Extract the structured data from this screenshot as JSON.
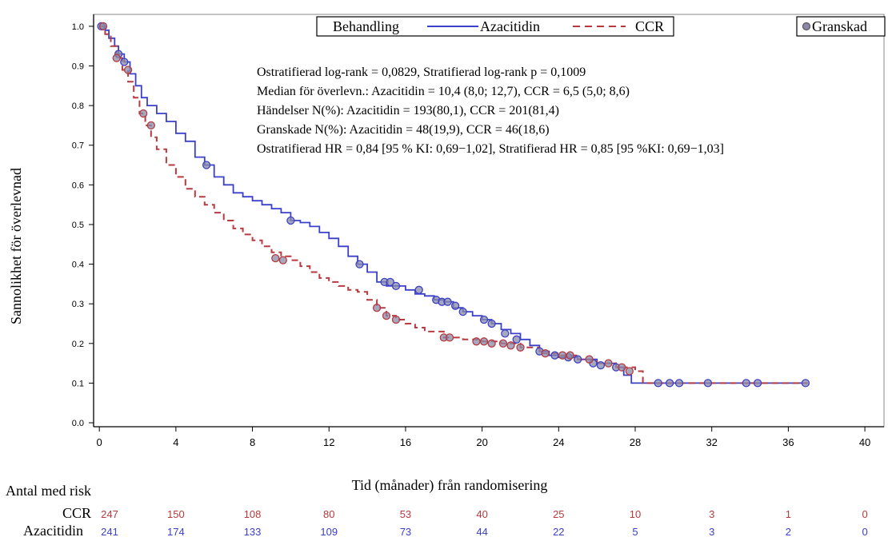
{
  "colors": {
    "azacitidin": "#3b40c8",
    "ccr": "#b63a3f",
    "censor_fill": "#8a8aa8",
    "axis": "#000000"
  },
  "legend": {
    "title": "Behandling",
    "azacitidin": "Azacitidin",
    "ccr": "CCR",
    "censored": "Granskad"
  },
  "stats": [
    "Ostratifierad log-rank = 0,0829, Stratifierad log-rank p = 0,1009",
    "Median för överlevn.: Azacitidin = 10,4 (8,0; 12,7), CCR = 6,5 (5,0; 8,6)",
    "Händelser N(%): Azacitidin = 193(80,1), CCR = 201(81,4)",
    "Granskade N(%): Azacitidin = 48(19,9), CCR = 46(18,6)",
    "Ostratifierad HR = 0,84 [95 % KI: 0,69−1,02], Stratifierad HR = 0,85 [95 %KI: 0,69−1,03]"
  ],
  "risk_table": {
    "title": "Antal med risk",
    "rows": [
      {
        "label": "CCR",
        "series": "ccr",
        "values": [
          "247",
          "150",
          "108",
          "80",
          "53",
          "40",
          "25",
          "10",
          "3",
          "1",
          "0"
        ]
      },
      {
        "label": "Azacitidin",
        "series": "azacitidin",
        "values": [
          "241",
          "174",
          "133",
          "109",
          "73",
          "44",
          "22",
          "5",
          "3",
          "2",
          "0"
        ]
      }
    ]
  },
  "chart_data": {
    "type": "line",
    "subtype": "kaplan-meier step",
    "title": "",
    "xlabel": "Tid (månader) från randomisering",
    "ylabel": "Sannolikhet för överlevnad",
    "xlim": [
      -0.3,
      41
    ],
    "ylim": [
      -0.01,
      1.03
    ],
    "xticks": [
      0,
      4,
      8,
      12,
      16,
      20,
      24,
      28,
      32,
      36,
      40
    ],
    "xtick_labels": [
      "0",
      "4",
      "8",
      "12",
      "16",
      "20",
      "24",
      "28",
      "32",
      "36",
      "40"
    ],
    "yticks": [
      0.0,
      0.1,
      0.2,
      0.3,
      0.4,
      0.5,
      0.6,
      0.7,
      0.8,
      0.9,
      1.0
    ],
    "ytick_labels": [
      "0.0",
      "0.1",
      "0.2",
      "0.3",
      "0.4",
      "0.5",
      "0.6",
      "0.7",
      "0.8",
      "0.9",
      "1.0"
    ],
    "grid": false,
    "legend_position": "top",
    "series": [
      {
        "name": "Azacitidin",
        "key": "azacitidin",
        "style": "solid",
        "x": [
          0,
          0.3,
          0.5,
          0.8,
          1.0,
          1.3,
          1.6,
          1.9,
          2.2,
          2.5,
          3.0,
          3.5,
          4.0,
          4.5,
          5.0,
          5.5,
          6.0,
          6.5,
          7.0,
          7.5,
          8.0,
          8.5,
          9.0,
          9.5,
          10.0,
          10.5,
          11.0,
          11.5,
          12.0,
          12.5,
          13.0,
          13.5,
          14.0,
          14.5,
          15.0,
          15.5,
          16.0,
          16.5,
          17.0,
          17.5,
          18.0,
          18.5,
          19.0,
          19.5,
          20.0,
          20.5,
          21.0,
          21.5,
          22.0,
          22.5,
          23.0,
          23.5,
          24.0,
          25.0,
          26.0,
          27.0,
          27.4,
          27.8,
          28.2,
          30.0,
          32.0,
          34.0,
          37.0
        ],
        "y": [
          1.0,
          0.99,
          0.97,
          0.95,
          0.93,
          0.91,
          0.88,
          0.85,
          0.82,
          0.8,
          0.78,
          0.76,
          0.73,
          0.71,
          0.67,
          0.65,
          0.62,
          0.6,
          0.58,
          0.57,
          0.56,
          0.55,
          0.54,
          0.53,
          0.51,
          0.505,
          0.495,
          0.48,
          0.465,
          0.445,
          0.42,
          0.4,
          0.38,
          0.355,
          0.345,
          0.345,
          0.335,
          0.325,
          0.32,
          0.31,
          0.305,
          0.29,
          0.28,
          0.27,
          0.26,
          0.25,
          0.235,
          0.225,
          0.21,
          0.195,
          0.18,
          0.17,
          0.165,
          0.16,
          0.15,
          0.14,
          0.12,
          0.1,
          0.1,
          0.1,
          0.1,
          0.1,
          0.1
        ],
        "censored_x": [
          0.1,
          1.0,
          1.3,
          5.6,
          10.0,
          13.6,
          14.9,
          15.2,
          15.5,
          16.7,
          17.6,
          17.9,
          18.2,
          18.6,
          19.0,
          20.1,
          20.5,
          21.2,
          21.8,
          23.0,
          23.8,
          24.5,
          25.0,
          25.8,
          26.2,
          27.0,
          29.2,
          29.8,
          30.3,
          31.8,
          33.8,
          34.4,
          36.9
        ],
        "censored_y": [
          1.0,
          0.93,
          0.91,
          0.65,
          0.51,
          0.4,
          0.355,
          0.355,
          0.345,
          0.335,
          0.31,
          0.305,
          0.305,
          0.295,
          0.28,
          0.26,
          0.25,
          0.225,
          0.21,
          0.18,
          0.17,
          0.165,
          0.16,
          0.15,
          0.145,
          0.14,
          0.1,
          0.1,
          0.1,
          0.1,
          0.1,
          0.1,
          0.1
        ]
      },
      {
        "name": "CCR",
        "key": "ccr",
        "style": "dashed",
        "x": [
          0,
          0.3,
          0.6,
          0.9,
          1.2,
          1.5,
          1.8,
          2.1,
          2.4,
          2.7,
          3.0,
          3.5,
          4.0,
          4.5,
          5.0,
          5.5,
          6.0,
          6.5,
          7.0,
          7.5,
          8.0,
          8.5,
          9.0,
          9.5,
          10.0,
          10.5,
          11.0,
          11.5,
          12.0,
          12.5,
          13.0,
          13.5,
          14.0,
          14.5,
          15.0,
          15.5,
          16.0,
          16.5,
          17.0,
          18.0,
          19.0,
          20.0,
          21.0,
          22.0,
          23.0,
          24.0,
          25.0,
          26.0,
          27.0,
          28.0,
          28.4,
          30.0,
          32.0,
          34.0,
          37.0
        ],
        "y": [
          1.0,
          0.98,
          0.95,
          0.92,
          0.89,
          0.86,
          0.82,
          0.78,
          0.75,
          0.72,
          0.69,
          0.65,
          0.62,
          0.59,
          0.57,
          0.55,
          0.53,
          0.51,
          0.49,
          0.475,
          0.46,
          0.445,
          0.43,
          0.42,
          0.41,
          0.395,
          0.38,
          0.365,
          0.355,
          0.345,
          0.335,
          0.33,
          0.31,
          0.29,
          0.27,
          0.26,
          0.25,
          0.24,
          0.23,
          0.215,
          0.21,
          0.205,
          0.2,
          0.19,
          0.175,
          0.17,
          0.16,
          0.15,
          0.14,
          0.13,
          0.1,
          0.1,
          0.1,
          0.1,
          0.1
        ],
        "censored_x": [
          0.2,
          0.9,
          1.5,
          2.3,
          2.7,
          9.2,
          9.6,
          14.5,
          15.0,
          15.5,
          18.0,
          18.3,
          19.7,
          20.1,
          20.5,
          21.1,
          21.5,
          22.0,
          23.3,
          24.2,
          24.6,
          25.6,
          26.6,
          27.3,
          27.7
        ],
        "censored_y": [
          1.0,
          0.92,
          0.89,
          0.78,
          0.75,
          0.415,
          0.41,
          0.29,
          0.27,
          0.26,
          0.215,
          0.215,
          0.205,
          0.205,
          0.2,
          0.2,
          0.195,
          0.19,
          0.175,
          0.17,
          0.17,
          0.16,
          0.15,
          0.14,
          0.13
        ]
      }
    ]
  }
}
